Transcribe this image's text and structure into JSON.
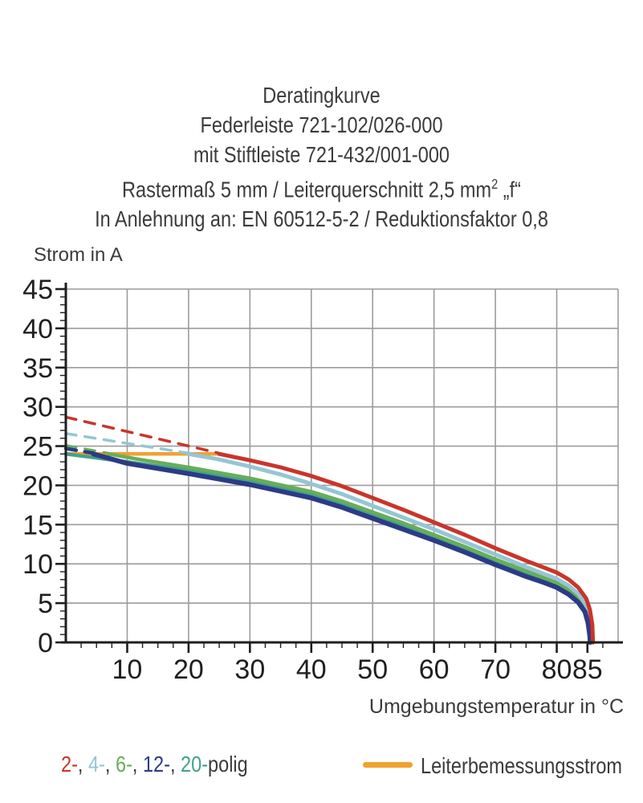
{
  "title": {
    "line1": "Deratingkurve",
    "line2": "Federleiste 721-102/026-000",
    "line3": "mit Stiftleiste 721-432/001-000",
    "line4_prefix": "Rastermaß 5 mm / Leiterquerschnitt 2,5 mm",
    "line4_sup": "2",
    "line4_suffix": " „f“",
    "line5": "In Anlehnung an: EN 60512-5-2 / Reduktionsfaktor 0,8"
  },
  "axes": {
    "y_title": "Strom in A",
    "x_title": "Umgebungstemperatur in °C"
  },
  "legend": {
    "poles": [
      {
        "label": "2-",
        "color": "#c9352b"
      },
      {
        "label": "4-",
        "color": "#94c6d4"
      },
      {
        "label": "6-",
        "color": "#67ae58"
      },
      {
        "label": "12-",
        "color": "#2c3b85"
      },
      {
        "label": "20-",
        "color": "#43a18c"
      }
    ],
    "poles_separator": ", ",
    "poles_suffix": "polig",
    "rated_label": "Leiterbemessungsstrom",
    "rated_color": "#f0a231"
  },
  "colors": {
    "grid": "#9c9c9c",
    "axis": "#1f1f1f",
    "tick_text": "#1f1f1f"
  },
  "chart_data": {
    "type": "line",
    "title": "Deratingkurve Federleiste 721-102/026-000 mit Stiftleiste 721-432/001-000",
    "xlabel": "Umgebungstemperatur in °C",
    "ylabel": "Strom in A",
    "xlim": [
      0,
      90
    ],
    "ylim": [
      0,
      45
    ],
    "grid": true,
    "x_major_ticks": [
      10,
      20,
      30,
      40,
      50,
      60,
      70,
      80,
      85
    ],
    "x_grid_lines": [
      10,
      20,
      30,
      40,
      50,
      60,
      70,
      80,
      90
    ],
    "y_major_ticks": [
      0,
      5,
      10,
      15,
      20,
      25,
      30,
      35,
      40,
      45
    ],
    "x_minor_step": 2.5,
    "y_minor_step": 1,
    "legend_position": "bottom",
    "series": [
      {
        "name": "Leiterbemessungsstrom",
        "color": "#f0a231",
        "width": 4.5,
        "solid": [
          [
            0,
            24
          ],
          [
            25.3,
            24
          ]
        ]
      },
      {
        "name": "20-polig",
        "color": "#43a18c",
        "width": 4.5,
        "solid": [
          [
            0,
            24
          ],
          [
            5,
            23.5
          ],
          [
            10,
            23.0
          ],
          [
            20,
            21.9
          ],
          [
            30,
            20.5
          ],
          [
            40,
            18.8
          ],
          [
            45,
            17.6
          ],
          [
            50,
            16.2
          ],
          [
            55,
            14.8
          ],
          [
            60,
            13.4
          ],
          [
            65,
            11.9
          ],
          [
            70,
            10.3
          ],
          [
            75,
            8.8
          ],
          [
            78,
            8.0
          ],
          [
            80,
            7.4
          ],
          [
            82,
            6.5
          ],
          [
            83.5,
            5.5
          ],
          [
            84.6,
            4.2
          ],
          [
            85.1,
            2.8
          ],
          [
            85.45,
            1.0
          ],
          [
            85.5,
            0
          ]
        ]
      },
      {
        "name": "6-polig",
        "color": "#67ae58",
        "width": 4.5,
        "dashed": [
          [
            0,
            25.1
          ],
          [
            7,
            24.1
          ]
        ],
        "solid": [
          [
            7,
            24
          ],
          [
            12,
            23.3
          ],
          [
            20,
            22.3
          ],
          [
            30,
            20.9
          ],
          [
            40,
            19.2
          ],
          [
            45,
            18.0
          ],
          [
            50,
            16.6
          ],
          [
            55,
            15.2
          ],
          [
            60,
            13.7
          ],
          [
            65,
            12.2
          ],
          [
            70,
            10.6
          ],
          [
            75,
            9.1
          ],
          [
            78,
            8.2
          ],
          [
            80,
            7.6
          ],
          [
            82,
            6.7
          ],
          [
            83.5,
            5.7
          ],
          [
            84.6,
            4.4
          ],
          [
            85.2,
            3.0
          ],
          [
            85.55,
            1.2
          ],
          [
            85.6,
            0
          ]
        ]
      },
      {
        "name": "4-polig",
        "color": "#94c6d4",
        "width": 5,
        "dashed": [
          [
            0,
            26.6
          ],
          [
            20,
            24.1
          ]
        ],
        "solid": [
          [
            20,
            24
          ],
          [
            25,
            23.3
          ],
          [
            30,
            22.4
          ],
          [
            35,
            21.4
          ],
          [
            40,
            20.2
          ],
          [
            45,
            18.9
          ],
          [
            50,
            17.4
          ],
          [
            55,
            15.9
          ],
          [
            60,
            14.4
          ],
          [
            65,
            12.8
          ],
          [
            70,
            11.2
          ],
          [
            75,
            9.6
          ],
          [
            78,
            8.7
          ],
          [
            80,
            8.1
          ],
          [
            82,
            7.2
          ],
          [
            83.5,
            6.2
          ],
          [
            84.8,
            4.8
          ],
          [
            85.3,
            3.5
          ],
          [
            85.7,
            1.6
          ],
          [
            85.75,
            0
          ]
        ]
      },
      {
        "name": "12-polig",
        "color": "#2c3b85",
        "width": 6,
        "dashed": [
          [
            0,
            24.7
          ],
          [
            4.5,
            24.1
          ]
        ],
        "solid": [
          [
            4.5,
            24
          ],
          [
            10,
            22.8
          ],
          [
            20,
            21.5
          ],
          [
            30,
            20.1
          ],
          [
            40,
            18.4
          ],
          [
            45,
            17.2
          ],
          [
            50,
            15.8
          ],
          [
            55,
            14.4
          ],
          [
            60,
            13.0
          ],
          [
            65,
            11.5
          ],
          [
            70,
            9.9
          ],
          [
            75,
            8.4
          ],
          [
            78,
            7.6
          ],
          [
            80,
            7.0
          ],
          [
            82,
            6.1
          ],
          [
            83.5,
            5.1
          ],
          [
            84.6,
            3.9
          ],
          [
            85.1,
            2.5
          ],
          [
            85.4,
            0.8
          ],
          [
            85.45,
            0
          ]
        ]
      },
      {
        "name": "2-polig",
        "color": "#c9352b",
        "width": 5,
        "dashed": [
          [
            0,
            28.7
          ],
          [
            25,
            24.1
          ]
        ],
        "solid": [
          [
            25,
            24
          ],
          [
            30,
            23.2
          ],
          [
            35,
            22.3
          ],
          [
            40,
            21.2
          ],
          [
            45,
            19.9
          ],
          [
            50,
            18.4
          ],
          [
            55,
            16.9
          ],
          [
            60,
            15.3
          ],
          [
            65,
            13.7
          ],
          [
            70,
            12.0
          ],
          [
            75,
            10.4
          ],
          [
            78,
            9.5
          ],
          [
            80,
            8.9
          ],
          [
            82,
            8.0
          ],
          [
            83.5,
            7.0
          ],
          [
            84.8,
            5.6
          ],
          [
            85.4,
            4.2
          ],
          [
            85.8,
            2.2
          ],
          [
            85.9,
            0
          ]
        ]
      }
    ]
  }
}
